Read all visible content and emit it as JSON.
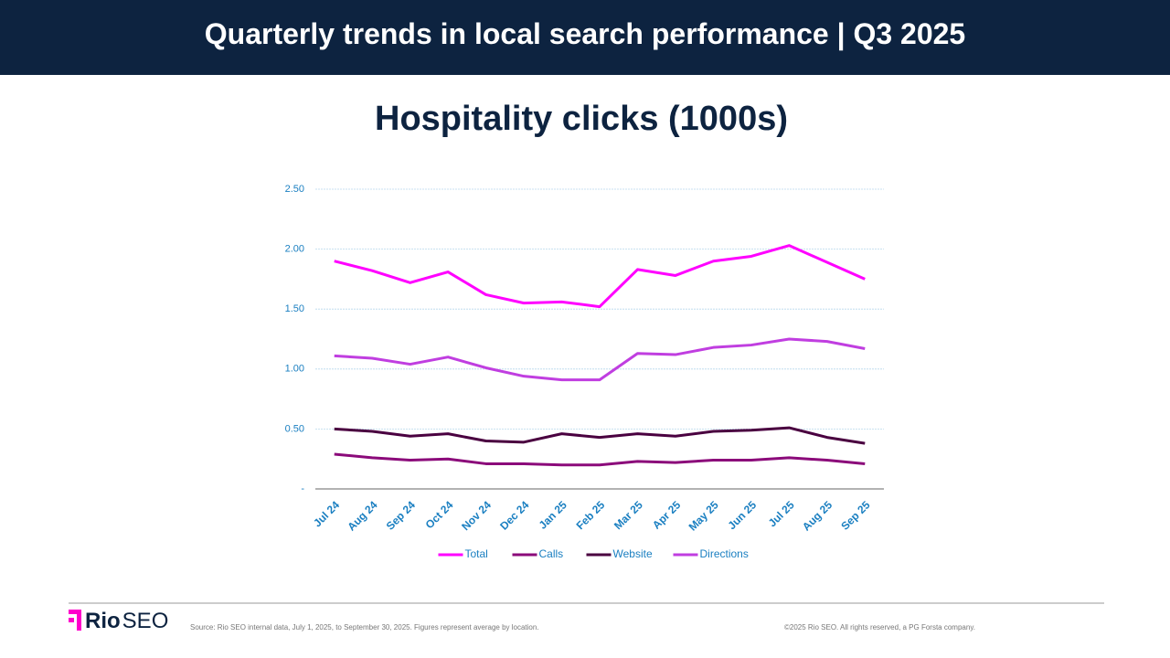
{
  "header": {
    "title": "Quarterly trends in local search performance | Q3 2025"
  },
  "chart_data": {
    "type": "line",
    "title": "Hospitality clicks (1000s)",
    "categories": [
      "Jul 24",
      "Aug 24",
      "Sep 24",
      "Oct 24",
      "Nov 24",
      "Dec 24",
      "Jan 25",
      "Feb 25",
      "Mar 25",
      "Apr 25",
      "May 25",
      "Jun 25",
      "Jul 25",
      "Aug 25",
      "Sep 25"
    ],
    "series": [
      {
        "name": "Total",
        "color": "#ff00ff",
        "values": [
          1.9,
          1.82,
          1.72,
          1.81,
          1.62,
          1.55,
          1.56,
          1.52,
          1.83,
          1.78,
          1.9,
          1.94,
          2.03,
          1.89,
          1.75
        ]
      },
      {
        "name": "Calls",
        "color": "#8b0a7a",
        "values": [
          0.29,
          0.26,
          0.24,
          0.25,
          0.21,
          0.21,
          0.2,
          0.2,
          0.23,
          0.22,
          0.24,
          0.24,
          0.26,
          0.24,
          0.21
        ]
      },
      {
        "name": "Website",
        "color": "#4a0040",
        "values": [
          0.5,
          0.48,
          0.44,
          0.46,
          0.4,
          0.39,
          0.46,
          0.43,
          0.46,
          0.44,
          0.48,
          0.49,
          0.51,
          0.43,
          0.38
        ]
      },
      {
        "name": "Directions",
        "color": "#c03ee0",
        "values": [
          1.11,
          1.09,
          1.04,
          1.1,
          1.01,
          0.94,
          0.91,
          0.91,
          1.13,
          1.12,
          1.18,
          1.2,
          1.25,
          1.23,
          1.17
        ]
      }
    ],
    "ylim": [
      0,
      2.5
    ],
    "yticks": [
      {
        "value": 0,
        "label": "-"
      },
      {
        "value": 0.5,
        "label": "0.50"
      },
      {
        "value": 1,
        "label": "1.00"
      },
      {
        "value": 1.5,
        "label": "1.50"
      },
      {
        "value": 2,
        "label": "2.00"
      },
      {
        "value": 2.5,
        "label": "2.50"
      }
    ],
    "grid": true,
    "legend": "bottom"
  },
  "footer": {
    "logo_bold": "Rio",
    "logo_light": "SEO",
    "source": "Source: Rio SEO internal data, July 1, 2025, to September 30, 2025. Figures represent average by location.",
    "copyright": "©2025 Rio SEO. All rights reserved, a PG Forsta company."
  }
}
